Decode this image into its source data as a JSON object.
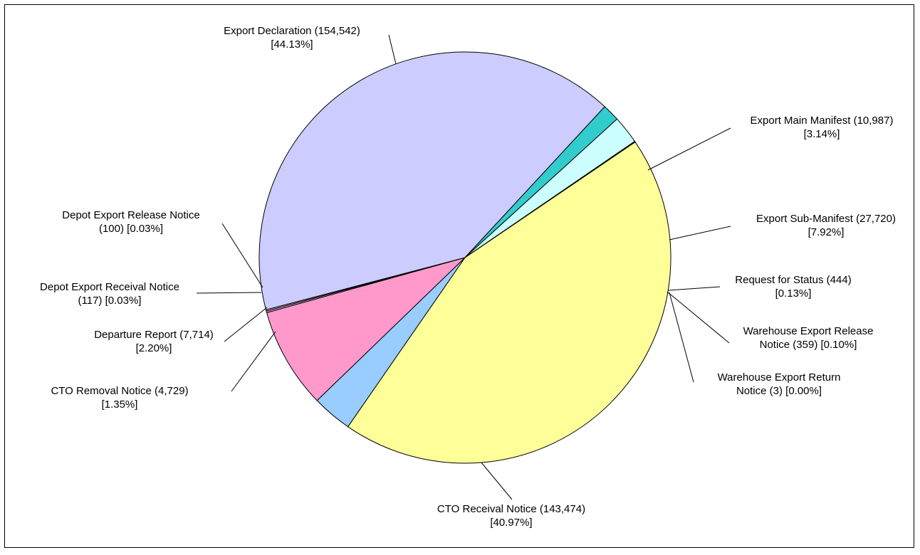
{
  "chart_data": {
    "type": "pie",
    "title": "",
    "slices": [
      {
        "name": "Export Declaration",
        "value": 154542,
        "percent": "44.13%",
        "color": "#FFFF99",
        "label_lines": [
          "Export Declaration (154,542)",
          "[44.13%]"
        ]
      },
      {
        "name": "Export Main Manifest",
        "value": 10987,
        "percent": "3.14%",
        "color": "#99CCFF",
        "label_lines": [
          "Export Main Manifest (10,987)",
          "[3.14%]"
        ]
      },
      {
        "name": "Export Sub-Manifest",
        "value": 27720,
        "percent": "7.92%",
        "color": "#FF99CC",
        "label_lines": [
          "Export Sub-Manifest (27,720)",
          "[7.92%]"
        ]
      },
      {
        "name": "Request for Status",
        "value": 444,
        "percent": "0.13%",
        "color": "#CC99FF",
        "label_lines": [
          "Request for Status (444)",
          "[0.13%]"
        ]
      },
      {
        "name": "Warehouse Export Release Notice",
        "value": 359,
        "percent": "0.10%",
        "color": "#FFCC99",
        "label_lines": [
          "Warehouse Export Release",
          "Notice (359) [0.10%]"
        ]
      },
      {
        "name": "Warehouse Export Return Notice",
        "value": 3,
        "percent": "0.00%",
        "color": "#CCFFCC",
        "label_lines": [
          "Warehouse Export Return",
          "Notice (3) [0.00%]"
        ]
      },
      {
        "name": "CTO Receival Notice",
        "value": 143474,
        "percent": "40.97%",
        "color": "#CCCCFF",
        "label_lines": [
          "CTO Receival Notice (143,474)",
          "[40.97%]"
        ]
      },
      {
        "name": "CTO Removal Notice",
        "value": 4729,
        "percent": "1.35%",
        "color": "#33CCCC",
        "label_lines": [
          "CTO Removal Notice (4,729)",
          "[1.35%]"
        ]
      },
      {
        "name": "Departure Report",
        "value": 7714,
        "percent": "2.20%",
        "color": "#CCFFFF",
        "label_lines": [
          "Departure Report (7,714)",
          "[2.20%]"
        ]
      },
      {
        "name": "Depot Export Receival Notice",
        "value": 117,
        "percent": "0.03%",
        "color": "#FFFF99",
        "label_lines": [
          "Depot Export Receival Notice",
          "(117) [0.03%]"
        ]
      },
      {
        "name": "Depot Export Release Notice",
        "value": 100,
        "percent": "0.03%",
        "color": "#99CCFF",
        "label_lines": [
          "Depot Export Release Notice",
          "(100) [0.03%]"
        ]
      }
    ],
    "legend": "none"
  }
}
